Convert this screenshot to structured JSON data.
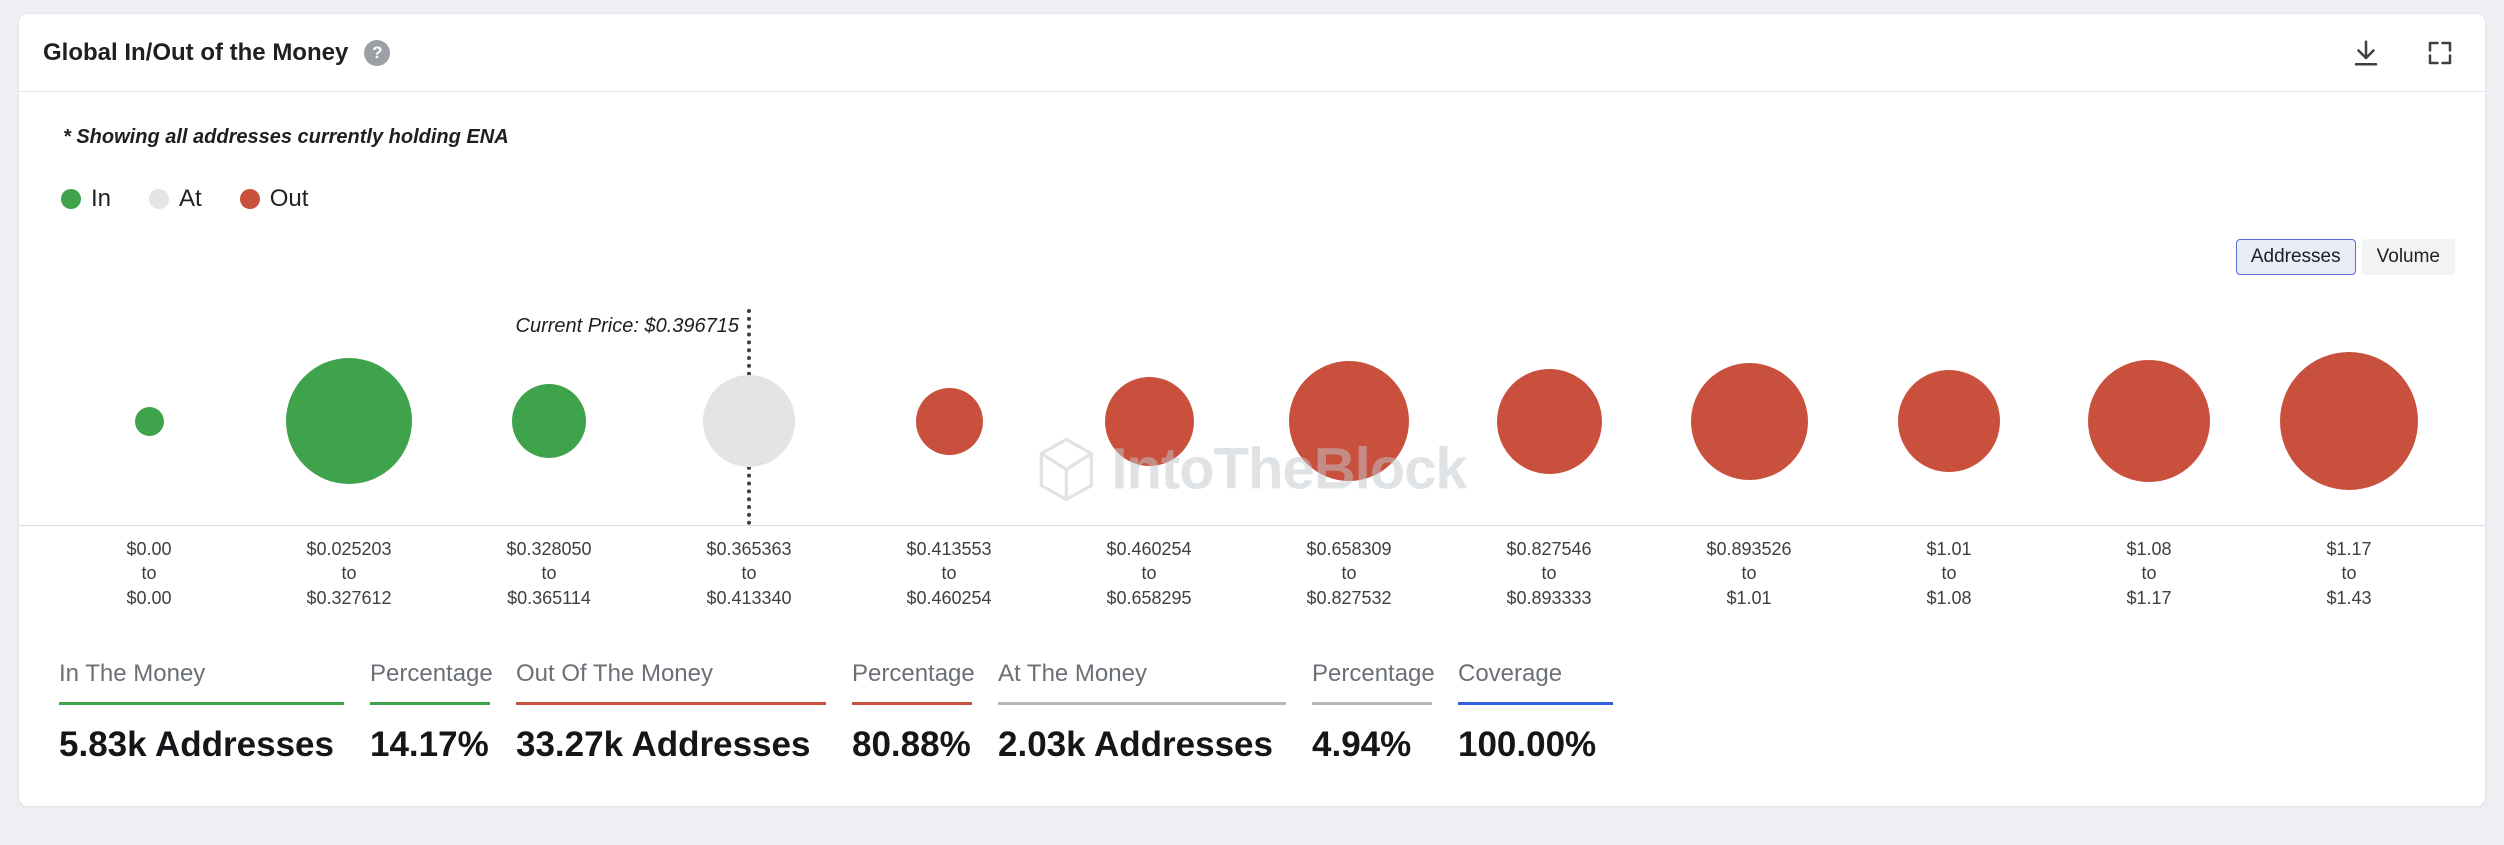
{
  "header": {
    "title": "Global In/Out of the Money",
    "help": "?"
  },
  "subtitle": "* Showing all addresses currently holding ENA",
  "legend": {
    "items": [
      {
        "label": "In",
        "color": "#3fa34c"
      },
      {
        "label": "At",
        "color": "#e3e4e6"
      },
      {
        "label": "Out",
        "color": "#c8503c"
      }
    ]
  },
  "view_toggle": {
    "options": [
      {
        "label": "Addresses",
        "selected": true
      },
      {
        "label": "Volume",
        "selected": false
      }
    ]
  },
  "chart_data": {
    "type": "bubble",
    "title": "Global In/Out of the Money",
    "current_price_label": "Current Price: $0.396715",
    "current_price_column": 4,
    "watermark": "IntoTheBlock",
    "range_separator": "to",
    "colors": {
      "in": "#3fa34c",
      "at": "#e3e4e6",
      "out": "#c8503c"
    },
    "legend_position": "top-left",
    "grid": false,
    "points": [
      {
        "range_from": "$0.00",
        "range_to": "$0.00",
        "status": "in",
        "diameter": 29
      },
      {
        "range_from": "$0.025203",
        "range_to": "$0.327612",
        "status": "in",
        "diameter": 126
      },
      {
        "range_from": "$0.328050",
        "range_to": "$0.365114",
        "status": "in",
        "diameter": 74
      },
      {
        "range_from": "$0.365363",
        "range_to": "$0.413340",
        "status": "at",
        "diameter": 92
      },
      {
        "range_from": "$0.413553",
        "range_to": "$0.460254",
        "status": "out",
        "diameter": 67
      },
      {
        "range_from": "$0.460254",
        "range_to": "$0.658295",
        "status": "out",
        "diameter": 89
      },
      {
        "range_from": "$0.658309",
        "range_to": "$0.827532",
        "status": "out",
        "diameter": 120
      },
      {
        "range_from": "$0.827546",
        "range_to": "$0.893333",
        "status": "out",
        "diameter": 105
      },
      {
        "range_from": "$0.893526",
        "range_to": "$1.01",
        "status": "out",
        "diameter": 117
      },
      {
        "range_from": "$1.01",
        "range_to": "$1.08",
        "status": "out",
        "diameter": 102
      },
      {
        "range_from": "$1.08",
        "range_to": "$1.17",
        "status": "out",
        "diameter": 122
      },
      {
        "range_from": "$1.17",
        "range_to": "$1.43",
        "status": "out",
        "diameter": 138
      }
    ]
  },
  "stats": [
    {
      "label": "In The Money",
      "value": "5.83k Addresses",
      "color": "#3fa34c"
    },
    {
      "label": "Percentage",
      "value": "14.17%",
      "color": "#3fa34c"
    },
    {
      "label": "Out Of The Money",
      "value": "33.27k Addresses",
      "color": "#c8503c"
    },
    {
      "label": "Percentage",
      "value": "80.88%",
      "color": "#c8503c"
    },
    {
      "label": "At The Money",
      "value": "2.03k Addresses",
      "color": "#b3b8be"
    },
    {
      "label": "Percentage",
      "value": "4.94%",
      "color": "#b3b8be"
    },
    {
      "label": "Coverage",
      "value": "100.00%",
      "color": "#2f5fde"
    }
  ]
}
